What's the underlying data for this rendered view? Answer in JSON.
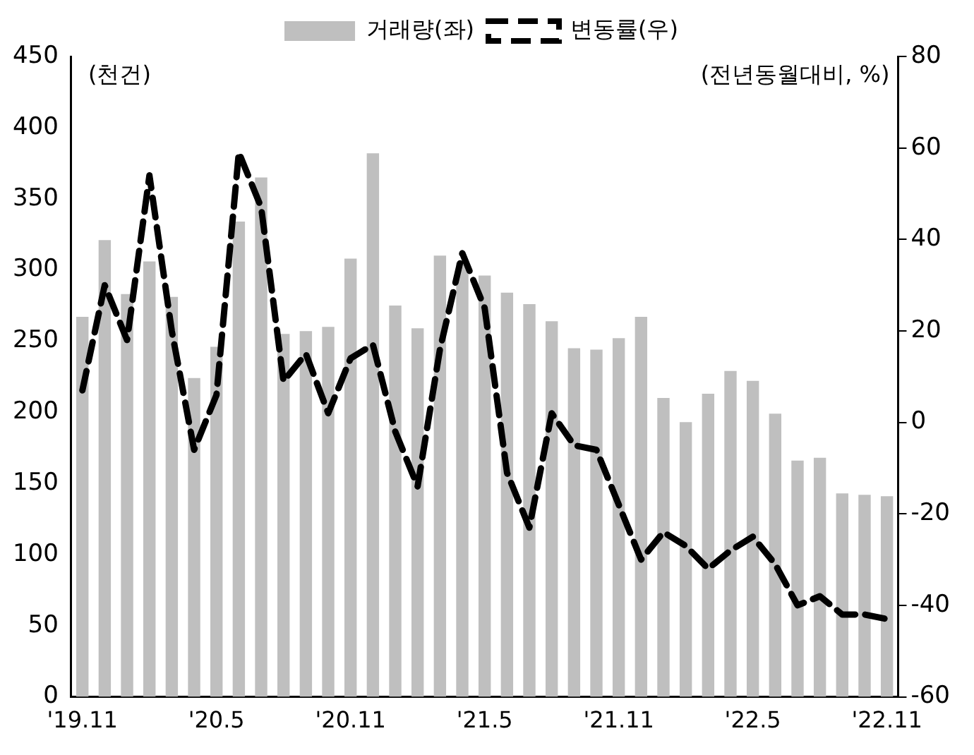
{
  "chart_data": {
    "type": "bar",
    "ylabel": "(천건)",
    "y2label": "(전년동월대비, %)",
    "categories": [
      "'19.11",
      null,
      null,
      null,
      null,
      null,
      "'20.5",
      null,
      null,
      null,
      null,
      null,
      "'20.11",
      null,
      null,
      null,
      null,
      null,
      "'21.5",
      null,
      null,
      null,
      null,
      null,
      "'21.11",
      null,
      null,
      null,
      null,
      null,
      "'22.5",
      null,
      null,
      null,
      null,
      null,
      "'22.11"
    ],
    "series": [
      {
        "name": "거래량(좌)",
        "color": "#bfbfbf",
        "values": [
          267,
          321,
          283,
          306,
          281,
          224,
          246,
          334,
          365,
          255,
          257,
          260,
          308,
          382,
          275,
          259,
          310,
          305,
          296,
          284,
          276,
          264,
          245,
          244,
          252,
          267,
          210,
          193,
          213,
          229,
          222,
          199,
          166,
          168,
          143,
          142,
          141
        ]
      },
      {
        "name": "변동률(우)",
        "type": "line",
        "axis": "y2",
        "color": "#000000",
        "line_style": "dashed",
        "values": [
          7,
          30,
          18,
          54,
          20,
          -6,
          6,
          59,
          47,
          9,
          15,
          2,
          14,
          17,
          -2,
          -14,
          16,
          37,
          25,
          -11,
          -23,
          2,
          -5,
          -6,
          -18,
          -30,
          -24,
          -27,
          -32,
          -28,
          -25,
          -31,
          -40,
          -38,
          -42,
          -42,
          -43
        ]
      }
    ],
    "ylim": [
      0,
      450
    ],
    "yticks": [
      0,
      50,
      100,
      150,
      200,
      250,
      300,
      350,
      400,
      450
    ],
    "y2lim": [
      -60,
      80
    ],
    "y2ticks": [
      -60,
      -40,
      -20,
      0,
      20,
      40,
      60,
      80
    ],
    "grid": false,
    "legend": "top",
    "marker": "none"
  }
}
